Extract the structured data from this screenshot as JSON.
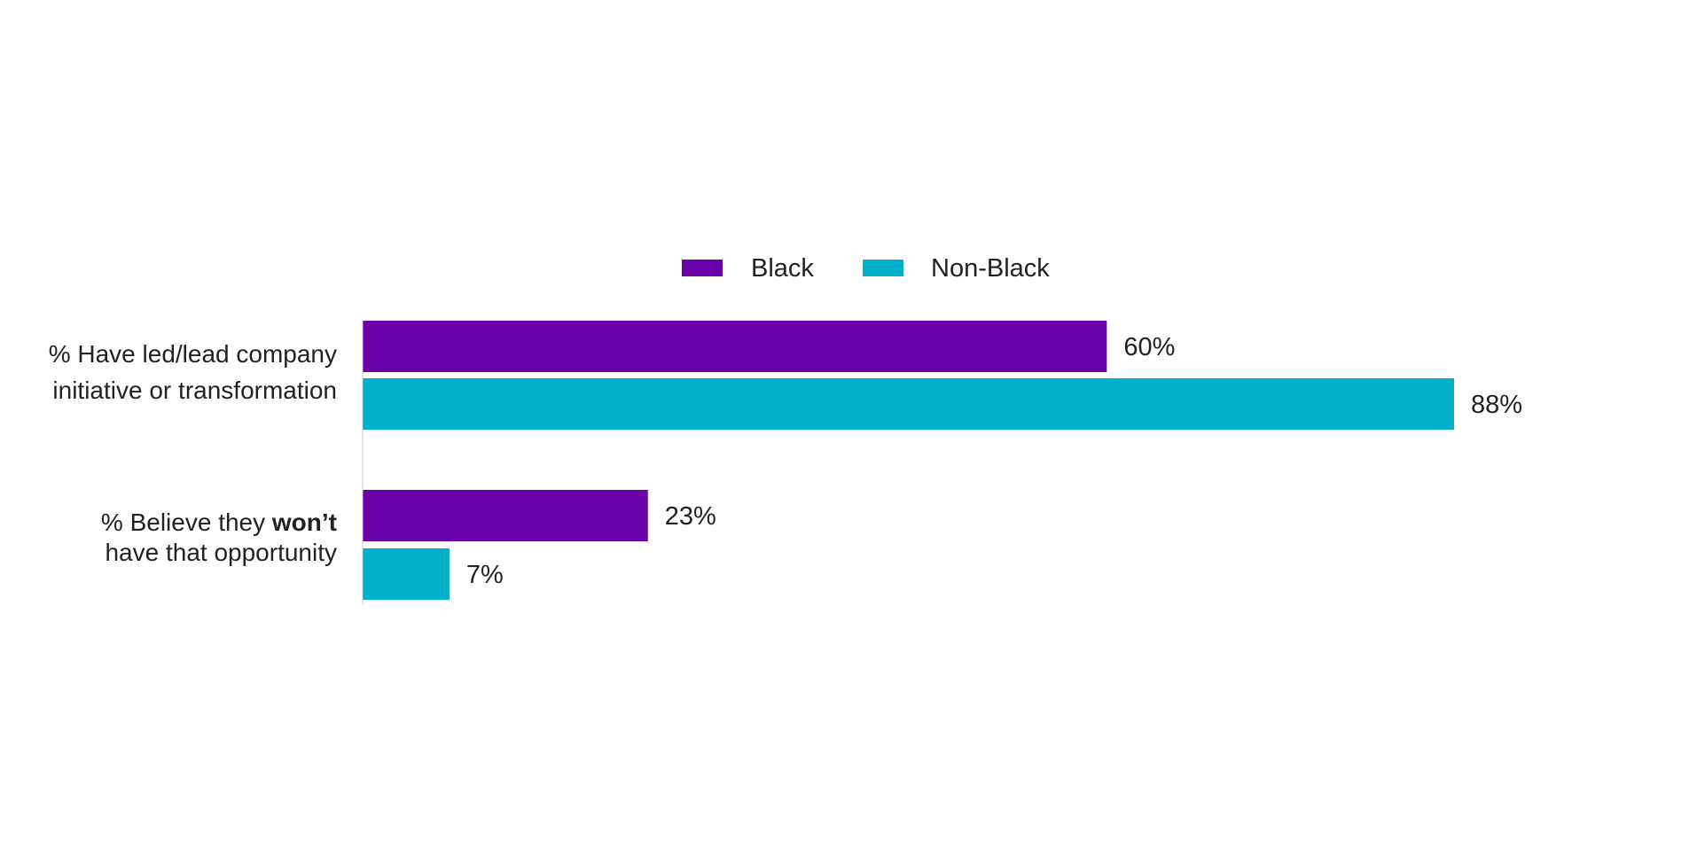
{
  "chart_data": {
    "type": "bar",
    "orientation": "horizontal",
    "categories": [
      {
        "line1": "% Have led/lead company",
        "line2": "initiative or transformation",
        "line2_bold": "",
        "line2_end": ""
      },
      {
        "line1": "% Believe they ",
        "line1_bold": "won’t",
        "line2": "have that opportunity"
      }
    ],
    "series": [
      {
        "name": "Black",
        "color": "#6a00aa",
        "values": [
          60,
          23
        ],
        "labels": [
          "60%",
          "23%"
        ]
      },
      {
        "name": "Non-Black",
        "color": "#00b0c8",
        "values": [
          88,
          7
        ],
        "labels": [
          "88%",
          "7%"
        ]
      }
    ],
    "xlim": [
      0,
      100
    ],
    "grid": false,
    "legend": "top-center",
    "axis_color": "#c8c8c8"
  }
}
